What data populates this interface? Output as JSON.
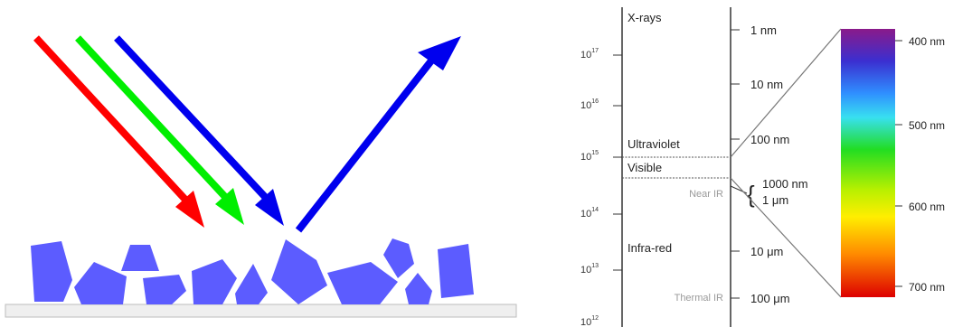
{
  "scatter": {
    "rays": [
      {
        "name": "red-ray",
        "color": "#ff0000",
        "direction": "incoming"
      },
      {
        "name": "green-ray",
        "color": "#00ee00",
        "direction": "incoming"
      },
      {
        "name": "blue-ray",
        "color": "#0000ee",
        "direction": "incoming"
      },
      {
        "name": "blue-ray-reflected",
        "color": "#0000ee",
        "direction": "reflected"
      }
    ],
    "particle_color": "#5c5cff",
    "surface_color": "#efefef"
  },
  "spectrum": {
    "frequency_exponents": [
      {
        "base": "10",
        "exp": "17"
      },
      {
        "base": "10",
        "exp": "16"
      },
      {
        "base": "10",
        "exp": "15"
      },
      {
        "base": "10",
        "exp": "14"
      },
      {
        "base": "10",
        "exp": "13"
      },
      {
        "base": "10",
        "exp": "12"
      }
    ],
    "regions": {
      "xrays": "X-rays",
      "ultraviolet": "Ultraviolet",
      "visible": "Visible",
      "near_ir": "Near IR",
      "infrared": "Infra-red",
      "thermal_ir": "Thermal IR"
    },
    "wavelengths": {
      "w1nm": "1 nm",
      "w10nm": "10 nm",
      "w100nm": "100 nm",
      "w1000nm": "1000 nm",
      "w1um": "1 μm",
      "w10um": "10 μm",
      "w100um": "100 μm"
    },
    "visible_scale": [
      "400 nm",
      "500 nm",
      "600 nm",
      "700 nm"
    ]
  }
}
